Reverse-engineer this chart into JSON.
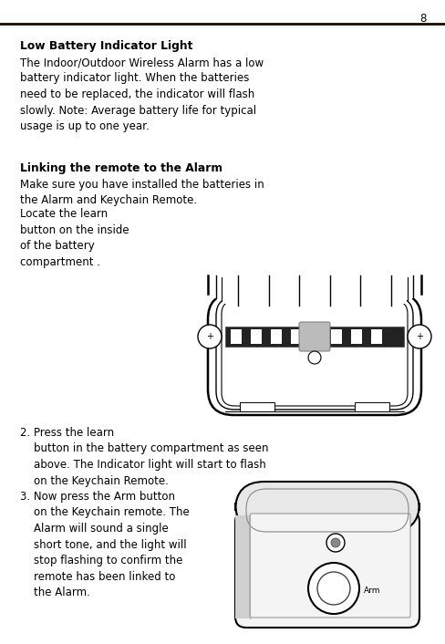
{
  "page_number": "8",
  "bg_color": "#ffffff",
  "text_color": "#000000",
  "line_color": "#1a0a00",
  "heading1": "Low Battery Indicator Light",
  "body1": "The Indoor/Outdoor Wireless Alarm has a low\nbattery indicator light. When the batteries\nneed to be replaced, the indicator will flash\nslowly. Note: Average battery life for typical\nusage is up to one year.",
  "heading2": "Linking the remote to the Alarm",
  "body2a": "Make sure you have installed the batteries in\nthe Alarm and Keychain Remote.",
  "body2b": "Locate the learn\nbutton on the inside\nof the battery\ncompartment .",
  "step2": "2. Press the learn\n    button in the battery compartment as seen\n    above. The Indicator light will start to flash\n    on the Keychain Remote.",
  "step3": "3. Now press the Arm button\n    on the Keychain remote. The\n    Alarm will sound a single\n    short tone, and the light will\n    stop flashing to confirm the\n    remote has been linked to\n    the Alarm.",
  "arm_label": "Arm",
  "fontsize_body": 8.5,
  "fontsize_heading": 8.8,
  "dpi": 100,
  "fig_w": 4.88,
  "fig_h": 7.06
}
